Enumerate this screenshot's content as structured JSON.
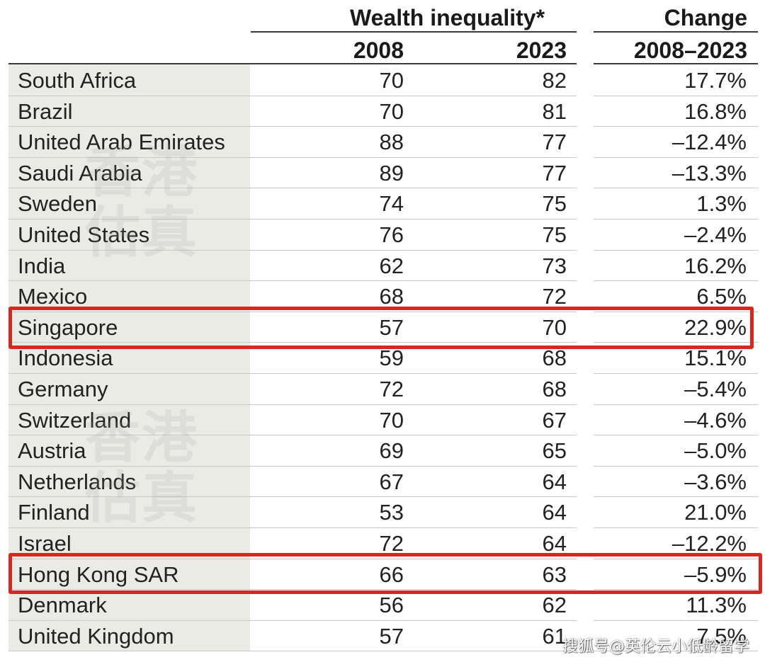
{
  "header": {
    "group_title": "Wealth inequality*",
    "col_2008": "2008",
    "col_2023": "2023",
    "change_title": "Change",
    "change_range": "2008–2023"
  },
  "rows": [
    {
      "country": "South Africa",
      "y2008": "70",
      "y2023": "82",
      "change": "17.7%"
    },
    {
      "country": "Brazil",
      "y2008": "70",
      "y2023": "81",
      "change": "16.8%"
    },
    {
      "country": "United Arab Emirates",
      "y2008": "88",
      "y2023": "77",
      "change": "–12.4%"
    },
    {
      "country": "Saudi Arabia",
      "y2008": "89",
      "y2023": "77",
      "change": "–13.3%"
    },
    {
      "country": "Sweden",
      "y2008": "74",
      "y2023": "75",
      "change": "1.3%"
    },
    {
      "country": "United States",
      "y2008": "76",
      "y2023": "75",
      "change": "–2.4%"
    },
    {
      "country": "India",
      "y2008": "62",
      "y2023": "73",
      "change": "16.2%"
    },
    {
      "country": "Mexico",
      "y2008": "68",
      "y2023": "72",
      "change": "6.5%"
    },
    {
      "country": "Singapore",
      "y2008": "57",
      "y2023": "70",
      "change": "22.9%"
    },
    {
      "country": "Indonesia",
      "y2008": "59",
      "y2023": "68",
      "change": "15.1%"
    },
    {
      "country": "Germany",
      "y2008": "72",
      "y2023": "68",
      "change": "–5.4%"
    },
    {
      "country": "Switzerland",
      "y2008": "70",
      "y2023": "67",
      "change": "–4.6%"
    },
    {
      "country": "Austria",
      "y2008": "69",
      "y2023": "65",
      "change": "–5.0%"
    },
    {
      "country": "Netherlands",
      "y2008": "67",
      "y2023": "64",
      "change": "–3.6%"
    },
    {
      "country": "Finland",
      "y2008": "53",
      "y2023": "64",
      "change": "21.0%"
    },
    {
      "country": "Israel",
      "y2008": "72",
      "y2023": "64",
      "change": "–12.2%"
    },
    {
      "country": "Hong Kong SAR",
      "y2008": "66",
      "y2023": "63",
      "change": "–5.9%"
    },
    {
      "country": "Denmark",
      "y2008": "56",
      "y2023": "62",
      "change": "11.3%"
    },
    {
      "country": "United Kingdom",
      "y2008": "57",
      "y2023": "61",
      "change": "7.5%"
    }
  ],
  "highlighted_rows": [
    "Singapore",
    "Hong Kong SAR"
  ],
  "watermark": {
    "chars": [
      "香",
      "港",
      "估",
      "真"
    ],
    "credit": "搜狐号@英伦云小低龄留学"
  },
  "colors": {
    "highlight": "#d8281e",
    "country_band": "#ebebe6",
    "text": "#222222"
  }
}
